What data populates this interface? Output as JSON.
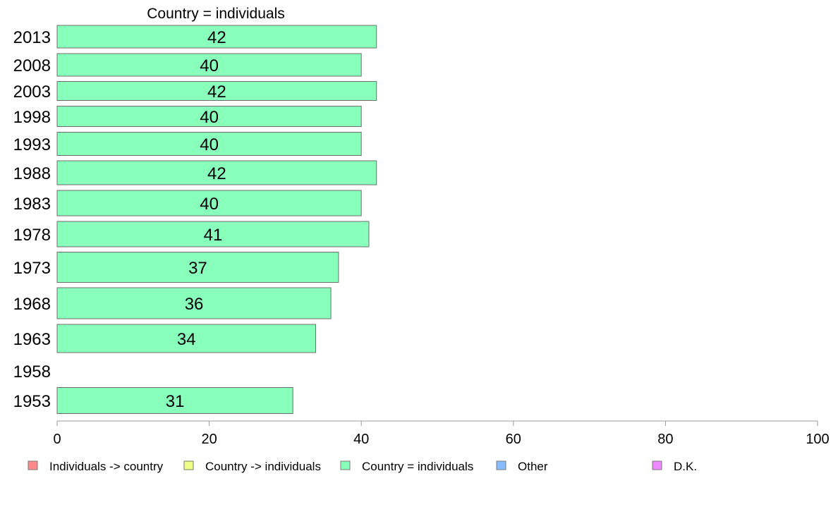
{
  "chart_data": {
    "type": "bar",
    "orientation": "horizontal",
    "title": "Country = individuals",
    "categories": [
      "2013",
      "2008",
      "2003",
      "1998",
      "1993",
      "1988",
      "1983",
      "1978",
      "1973",
      "1968",
      "1963",
      "1958",
      "1953"
    ],
    "values": [
      42,
      40,
      42,
      40,
      40,
      42,
      40,
      41,
      37,
      36,
      34,
      null,
      31
    ],
    "data_labels": [
      "42",
      "40",
      "42",
      "40",
      "40",
      "42",
      "40",
      "41",
      "37",
      "36",
      "34",
      "",
      "31"
    ],
    "xlim": [
      0,
      100
    ],
    "x_ticks": [
      "0",
      "20",
      "40",
      "60",
      "80",
      "100"
    ],
    "grid": false,
    "bar_color": "#88ffbb",
    "bar_stroke": "#6e6e6e",
    "legend_position": "bottom",
    "legend": [
      {
        "label": "Individuals -> country",
        "color": "#ff8888"
      },
      {
        "label": "Country -> individuals",
        "color": "#eeff88"
      },
      {
        "label": "Country = individuals",
        "color": "#88ffbb"
      },
      {
        "label": "Other",
        "color": "#88bbff"
      },
      {
        "label": "D.K.",
        "color": "#ee88ff"
      }
    ]
  }
}
